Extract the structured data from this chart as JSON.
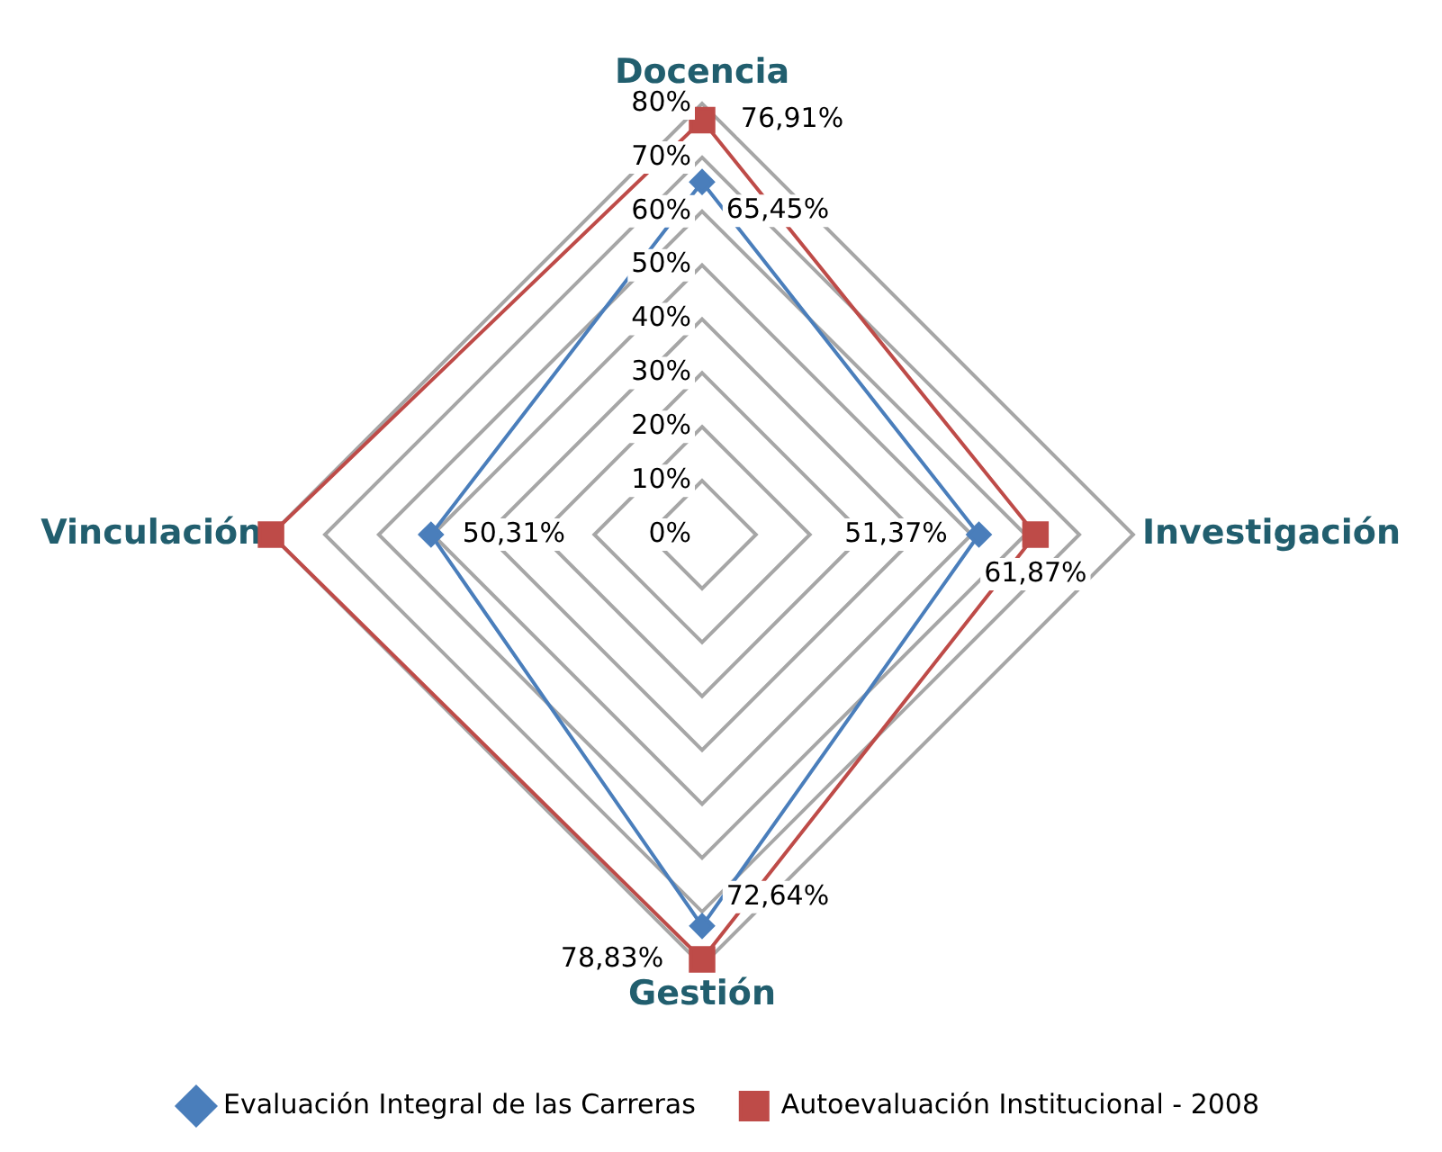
{
  "chart_data": {
    "type": "radar",
    "categories": [
      "Docencia",
      "Investigación",
      "Gestión",
      "Vinculación"
    ],
    "series": [
      {
        "name": "Evaluación Integral de las Carreras",
        "color": "#4a7ebb",
        "marker": "diamond",
        "values": [
          65.45,
          51.37,
          72.64,
          50.31
        ],
        "value_labels": [
          "65,45%",
          "51,37%",
          "72,64%",
          "50,31%"
        ]
      },
      {
        "name": "Autoevaluación Institucional - 2008",
        "color": "#be4b48",
        "marker": "square",
        "values": [
          76.91,
          61.87,
          78.83,
          80
        ],
        "value_labels": [
          "76,91%",
          "61,87%",
          "78,83%",
          null
        ]
      }
    ],
    "ylim": [
      0,
      80
    ],
    "yticks": [
      {
        "value": 0,
        "label": "0%"
      },
      {
        "value": 10,
        "label": "10%"
      },
      {
        "value": 20,
        "label": "20%"
      },
      {
        "value": 30,
        "label": "30%"
      },
      {
        "value": 40,
        "label": "40%"
      },
      {
        "value": 50,
        "label": "50%"
      },
      {
        "value": 60,
        "label": "60%"
      },
      {
        "value": 70,
        "label": "70%"
      },
      {
        "value": 80,
        "label": "80%"
      }
    ],
    "grid": true,
    "legend": "bottom"
  }
}
